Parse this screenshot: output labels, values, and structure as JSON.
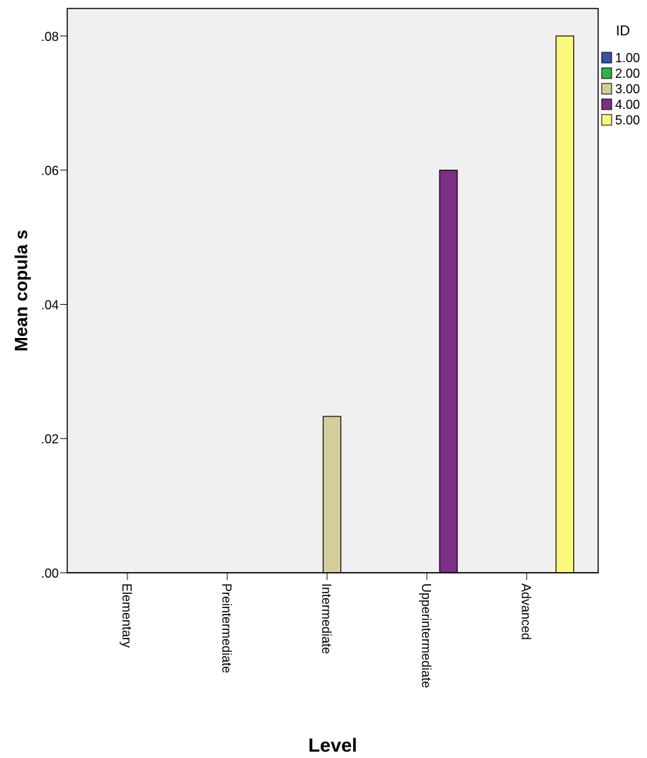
{
  "chart_data": {
    "type": "bar",
    "x_label": "Level",
    "y_label": "Mean copula s",
    "legend_title": "ID",
    "categories": [
      "Elementary",
      "Preintermediate",
      "Intermediate",
      "Upperintermediate",
      "Advanced"
    ],
    "series": [
      {
        "name": "1.00",
        "color": "#3953a4",
        "values": [
          0,
          null,
          null,
          null,
          null
        ]
      },
      {
        "name": "2.00",
        "color": "#2db34a",
        "values": [
          null,
          0,
          null,
          null,
          null
        ]
      },
      {
        "name": "3.00",
        "color": "#d3cd9b",
        "values": [
          null,
          null,
          0.0233,
          null,
          null
        ]
      },
      {
        "name": "4.00",
        "color": "#7c2f84",
        "values": [
          null,
          null,
          null,
          0.06,
          null
        ]
      },
      {
        "name": "5.00",
        "color": "#fbf97d",
        "values": [
          null,
          null,
          null,
          null,
          0.08
        ]
      }
    ],
    "ylim": [
      0,
      0.0841
    ],
    "yticks": [
      {
        "value": 0,
        "label": ".00"
      },
      {
        "value": 0.02,
        "label": ".02"
      },
      {
        "value": 0.04,
        "label": ".04"
      },
      {
        "value": 0.06,
        "label": ".06"
      },
      {
        "value": 0.08,
        "label": ".08"
      }
    ],
    "legend_position": "right"
  }
}
